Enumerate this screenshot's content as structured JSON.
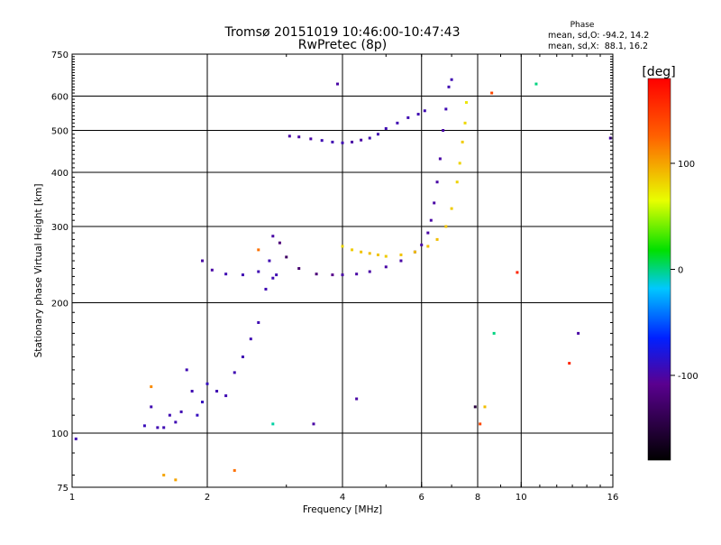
{
  "chart_data": {
    "type": "scatter",
    "title": "Tromsø 20151019 10:46:00-10:47:43",
    "subtitle": "RwPretec (8p)",
    "xlabel": "Frequency [MHz]",
    "ylabel": "Stationary phase Virtual Height [km]",
    "xscale": "log",
    "yscale": "log",
    "xlim": [
      1,
      16
    ],
    "ylim": [
      75,
      750
    ],
    "x_ticks": [
      1,
      2,
      4,
      6,
      8,
      10,
      16
    ],
    "x_tick_labels": [
      "1",
      "2",
      "4",
      "6",
      "8",
      "10",
      "16"
    ],
    "y_ticks": [
      75,
      100,
      200,
      300,
      400,
      500,
      600,
      750
    ],
    "y_tick_labels": [
      "75",
      "100",
      "200",
      "300",
      "400",
      "500",
      "600",
      "750"
    ],
    "x_grid": [
      2,
      4,
      6,
      8,
      10
    ],
    "y_grid": [
      100,
      200,
      300,
      400,
      500,
      600
    ],
    "grid": true,
    "stats": {
      "heading": "Phase",
      "line_o": "mean, sd,O: -94.2, 14.2",
      "line_x": "mean, sd,X:  88.1, 16.2"
    },
    "colorbar": {
      "label": "[deg]",
      "min": -180,
      "max": 180,
      "tick_values": [
        100,
        0,
        -100
      ],
      "tick_labels": [
        "100",
        "0",
        "-100"
      ]
    },
    "series": [
      {
        "trace": "low-frequency trace",
        "x": [
          1.02,
          1.45,
          1.5,
          1.55,
          1.6,
          1.65,
          1.7,
          1.75,
          1.8,
          1.85,
          1.9,
          1.95,
          2.0,
          2.1,
          2.2,
          2.3,
          2.4,
          2.5,
          2.6,
          2.7,
          2.8,
          2.85
        ],
        "y": [
          97,
          104,
          115,
          103,
          103,
          110,
          106,
          112,
          140,
          125,
          110,
          118,
          130,
          125,
          122,
          138,
          150,
          165,
          180,
          215,
          228,
          232
        ],
        "phase": [
          -95,
          -92,
          -95,
          -95,
          -95,
          -95,
          -95,
          -95,
          -95,
          -95,
          -90,
          -90,
          -90,
          -95,
          -95,
          -95,
          -95,
          -95,
          -95,
          -95,
          -95,
          -95
        ]
      },
      {
        "trace": "O-mode F trace",
        "x": [
          1.95,
          2.05,
          2.2,
          2.4,
          2.6,
          2.75,
          2.8,
          2.9,
          3.0,
          3.2,
          3.5,
          3.8,
          4.0,
          4.3,
          4.6,
          5.0,
          5.4,
          5.8,
          6.0,
          6.2,
          6.3,
          6.4,
          6.5,
          6.6,
          6.7,
          6.8,
          6.9,
          7.0
        ],
        "y": [
          250,
          238,
          233,
          232,
          236,
          250,
          285,
          275,
          255,
          240,
          233,
          232,
          232,
          233,
          236,
          242,
          250,
          262,
          272,
          290,
          310,
          340,
          380,
          430,
          500,
          560,
          630,
          655
        ],
        "phase": [
          -100,
          -100,
          -95,
          -95,
          -95,
          -95,
          -100,
          -120,
          -130,
          -125,
          -120,
          -110,
          -100,
          -100,
          -100,
          -100,
          -100,
          -100,
          -100,
          -100,
          -100,
          -100,
          -100,
          -100,
          -100,
          -95,
          -95,
          -95
        ]
      },
      {
        "trace": "X-mode F trace",
        "x": [
          4.0,
          4.2,
          4.4,
          4.6,
          4.8,
          5.0,
          5.4,
          5.8,
          6.2,
          6.5,
          6.8,
          7.0,
          7.2,
          7.3,
          7.4,
          7.5,
          7.55
        ],
        "y": [
          270,
          265,
          262,
          260,
          258,
          256,
          258,
          262,
          270,
          280,
          300,
          330,
          380,
          420,
          470,
          520,
          580
        ],
        "phase": [
          80,
          85,
          88,
          90,
          88,
          85,
          88,
          90,
          90,
          90,
          88,
          85,
          82,
          82,
          85,
          80,
          75
        ]
      },
      {
        "trace": "upper trace",
        "x": [
          3.05,
          3.2,
          3.4,
          3.6,
          3.8,
          4.0,
          4.2,
          4.4,
          4.6,
          4.8,
          5.0,
          5.3,
          5.6,
          5.9,
          6.1
        ],
        "y": [
          485,
          483,
          478,
          474,
          470,
          468,
          470,
          475,
          480,
          490,
          505,
          520,
          535,
          545,
          555
        ],
        "phase": [
          -100,
          -100,
          -100,
          -95,
          -95,
          -95,
          -100,
          -100,
          -95,
          -95,
          -95,
          -95,
          -95,
          -95,
          -95
        ]
      },
      {
        "trace": "scattered points",
        "x": [
          1.5,
          1.6,
          1.7,
          2.3,
          2.6,
          2.8,
          3.45,
          3.9,
          4.3,
          7.9,
          8.1,
          8.3,
          8.6,
          8.7,
          9.8,
          10.8,
          12.8,
          13.4,
          15.8
        ],
        "y": [
          128,
          80,
          78,
          82,
          265,
          105,
          105,
          640,
          120,
          115,
          105,
          115,
          610,
          170,
          235,
          640,
          145,
          170,
          480
        ],
        "phase": [
          110,
          100,
          100,
          120,
          120,
          -5,
          -100,
          -100,
          -100,
          -150,
          140,
          90,
          140,
          0,
          160,
          0,
          160,
          -100,
          -100
        ]
      }
    ]
  }
}
